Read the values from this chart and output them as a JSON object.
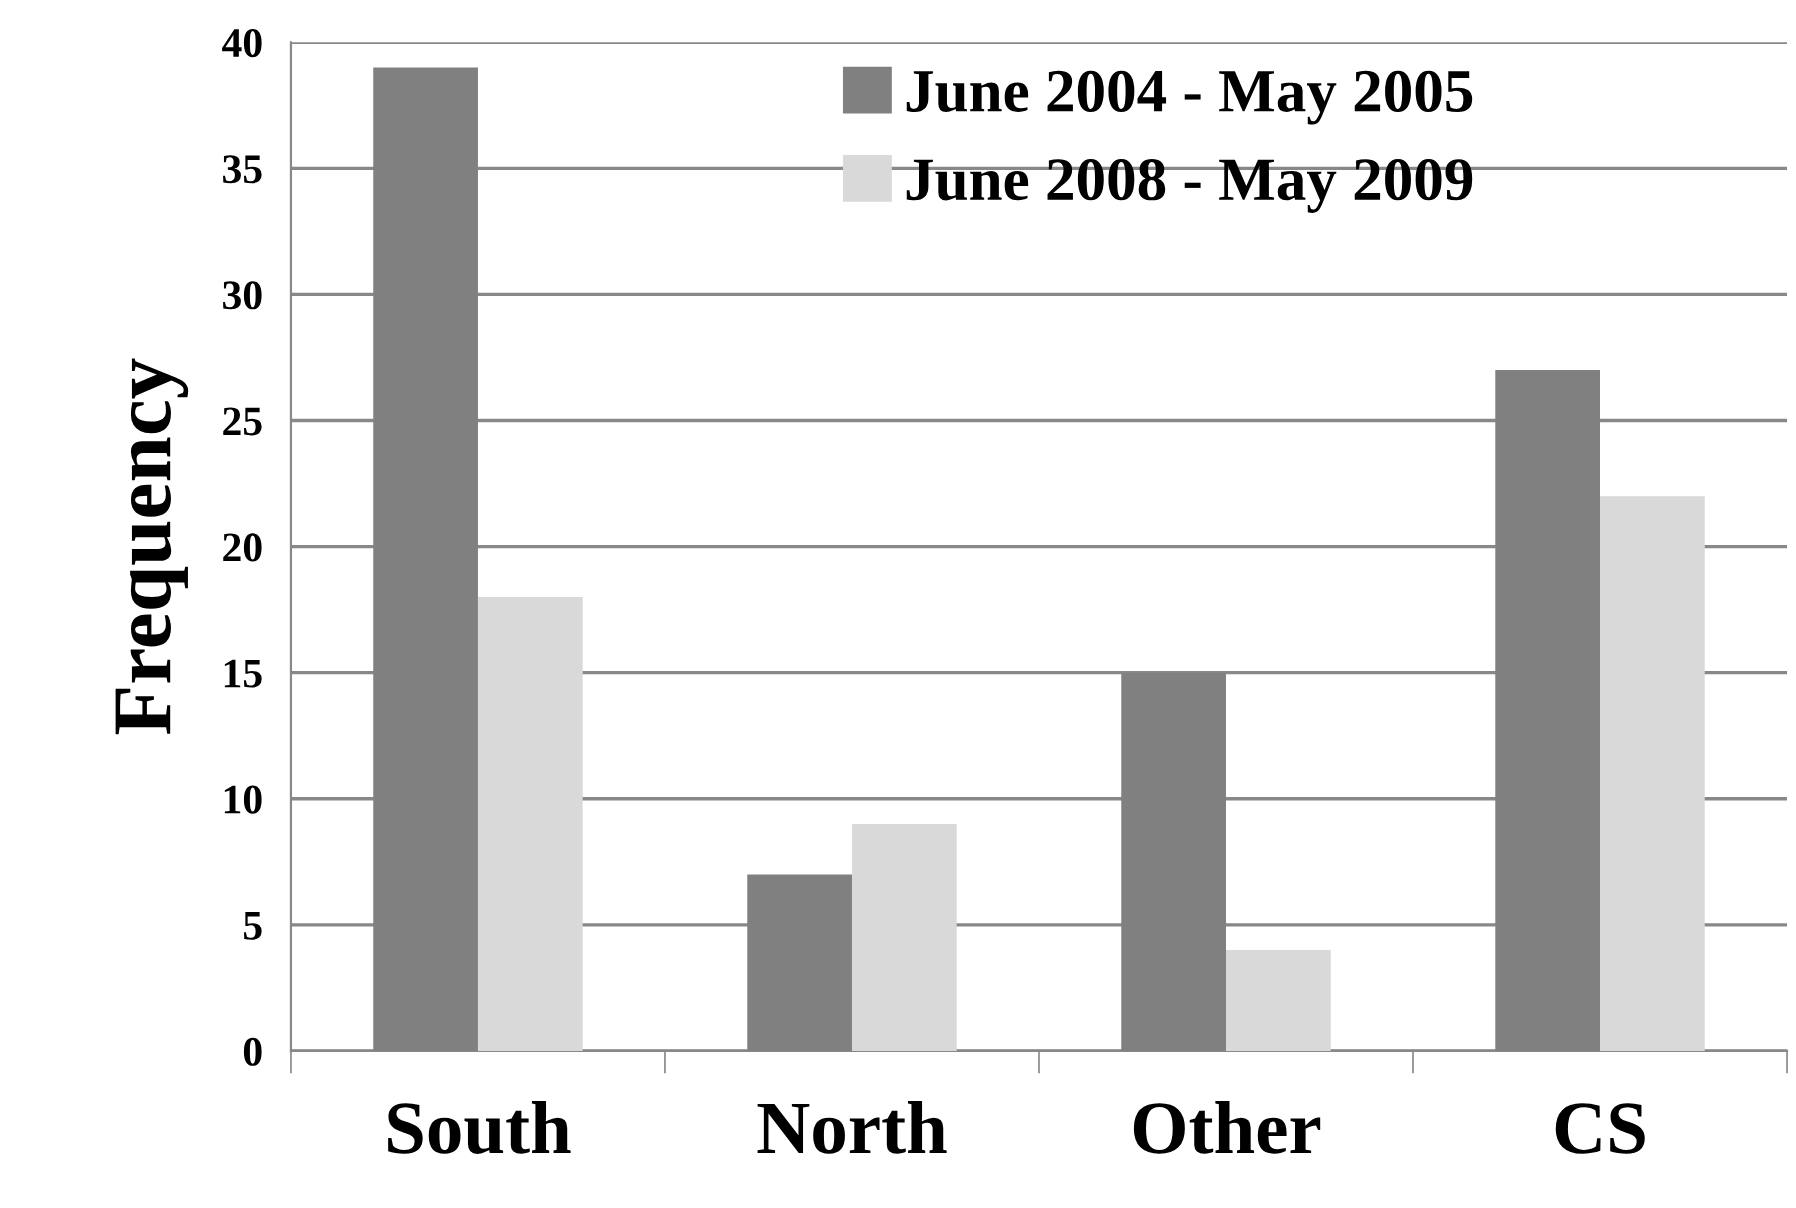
{
  "chart_data": {
    "type": "bar",
    "ylabel": "Frequency",
    "categories": [
      "South",
      "North",
      "Other",
      "CS"
    ],
    "series": [
      {
        "name": "June 2004 - May 2005",
        "color": "#808080",
        "values": [
          39,
          7,
          15,
          27
        ]
      },
      {
        "name": "June 2008 - May 2009",
        "color": "#d9d9d9",
        "values": [
          18,
          9,
          4,
          22
        ]
      }
    ],
    "ylim": [
      0,
      40
    ],
    "yticks": [
      0,
      5,
      10,
      15,
      20,
      25,
      30,
      35,
      40
    ],
    "grid": "y",
    "legend": "top"
  }
}
